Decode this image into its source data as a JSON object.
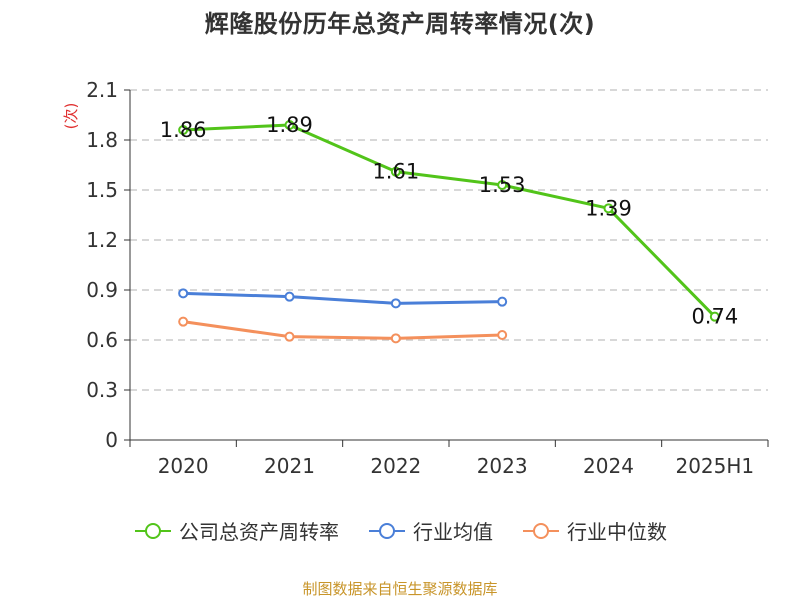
{
  "title": "辉隆股份历年总资产周转率情况(次)",
  "source": "制图数据来自恒生聚源数据库",
  "colors": {
    "company": "#52c41a",
    "industry_avg": "#4a7fd8",
    "industry_median": "#f4905c",
    "source_text": "#c8952a",
    "ylabel_text": "#e03030"
  },
  "chart_data": {
    "type": "line",
    "title": "辉隆股份历年总资产周转率情况(次)",
    "ylabel": "(次)",
    "xlabel": "",
    "categories": [
      "2020",
      "2021",
      "2022",
      "2023",
      "2024",
      "2025H1"
    ],
    "ylim": [
      0,
      2.1
    ],
    "yticks": [
      0,
      0.3,
      0.6,
      0.9,
      1.2,
      1.5,
      1.8,
      2.1
    ],
    "ytick_labels": [
      "0",
      "0.3",
      "0.6",
      "0.9",
      "1.2",
      "1.5",
      "1.8",
      "2.1"
    ],
    "grid": true,
    "legend_position": "bottom",
    "series": [
      {
        "name": "公司总资产周转率",
        "color_key": "company",
        "values": [
          1.86,
          1.89,
          1.61,
          1.53,
          1.39,
          0.74
        ],
        "data_labels": [
          "1.86",
          "1.89",
          "1.61",
          "1.53",
          "1.39",
          "0.74"
        ]
      },
      {
        "name": "行业均值",
        "color_key": "industry_avg",
        "values": [
          0.88,
          0.86,
          0.82,
          0.83,
          null,
          null
        ]
      },
      {
        "name": "行业中位数",
        "color_key": "industry_median",
        "values": [
          0.71,
          0.62,
          0.61,
          0.63,
          null,
          null
        ]
      }
    ]
  }
}
